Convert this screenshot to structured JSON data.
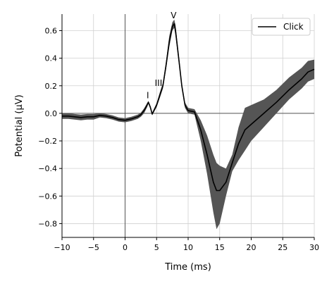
{
  "chart_data": {
    "type": "line",
    "xlabel": "Time (ms)",
    "ylabel": "Potential (µV)",
    "xlim": [
      -10,
      30
    ],
    "ylim": [
      -0.9,
      0.72
    ],
    "grid": true,
    "legend_position": "top-right",
    "xticks": [
      -10,
      -5,
      0,
      5,
      10,
      15,
      20,
      25,
      30
    ],
    "xtick_labels": [
      "−10",
      "−5",
      "0",
      "5",
      "10",
      "15",
      "20",
      "25",
      "30"
    ],
    "yticks": [
      -0.8,
      -0.6,
      -0.4,
      -0.2,
      0.0,
      0.2,
      0.4,
      0.6
    ],
    "ytick_labels": [
      "−0.8",
      "−0.6",
      "−0.4",
      "−0.2",
      "0.0",
      "0.2",
      "0.4",
      "0.6"
    ],
    "reference_lines": {
      "x": 0,
      "y": 0
    },
    "annotations": [
      {
        "text": "I",
        "x": 3.6,
        "y": 0.11
      },
      {
        "text": "III",
        "x": 5.3,
        "y": 0.2
      },
      {
        "text": "V",
        "x": 7.7,
        "y": 0.69
      }
    ],
    "series": [
      {
        "name": "Click",
        "color": "#000000",
        "band_color": "#555555",
        "x": [
          -10,
          -9,
          -8,
          -7,
          -6,
          -5,
          -4,
          -3,
          -2,
          -1,
          0,
          1,
          2,
          2.5,
          3,
          3.5,
          3.7,
          4,
          4.3,
          5,
          5.5,
          6,
          6.5,
          7,
          7.5,
          7.8,
          8,
          8.5,
          9,
          9.5,
          10,
          11,
          12,
          13,
          14,
          14.5,
          15,
          16,
          17,
          18,
          19,
          20,
          22,
          24,
          26,
          28,
          29,
          30
        ],
        "y": [
          -0.02,
          -0.02,
          -0.025,
          -0.03,
          -0.025,
          -0.025,
          -0.015,
          -0.02,
          -0.03,
          -0.045,
          -0.05,
          -0.04,
          -0.025,
          -0.01,
          0.02,
          0.06,
          0.08,
          0.045,
          -0.005,
          0.06,
          0.13,
          0.2,
          0.35,
          0.52,
          0.63,
          0.65,
          0.6,
          0.4,
          0.2,
          0.06,
          0.02,
          0.01,
          -0.12,
          -0.3,
          -0.5,
          -0.56,
          -0.56,
          -0.5,
          -0.36,
          -0.22,
          -0.12,
          -0.08,
          0.0,
          0.08,
          0.17,
          0.25,
          0.3,
          0.32
        ],
        "lower": [
          -0.04,
          -0.04,
          -0.045,
          -0.05,
          -0.045,
          -0.045,
          -0.03,
          -0.035,
          -0.045,
          -0.06,
          -0.065,
          -0.055,
          -0.04,
          -0.025,
          0.0,
          0.045,
          0.07,
          0.035,
          -0.015,
          0.045,
          0.11,
          0.18,
          0.32,
          0.48,
          0.6,
          0.62,
          0.56,
          0.37,
          0.18,
          0.04,
          0.0,
          -0.01,
          -0.2,
          -0.44,
          -0.72,
          -0.84,
          -0.8,
          -0.6,
          -0.42,
          -0.34,
          -0.27,
          -0.2,
          -0.1,
          0.0,
          0.1,
          0.18,
          0.23,
          0.25
        ],
        "upper": [
          0.0,
          0.0,
          -0.005,
          -0.01,
          -0.005,
          -0.005,
          0.0,
          -0.005,
          -0.015,
          -0.03,
          -0.035,
          -0.025,
          -0.01,
          0.005,
          0.035,
          0.075,
          0.09,
          0.055,
          0.005,
          0.075,
          0.15,
          0.22,
          0.38,
          0.56,
          0.66,
          0.68,
          0.64,
          0.43,
          0.22,
          0.08,
          0.04,
          0.03,
          -0.05,
          -0.16,
          -0.3,
          -0.36,
          -0.38,
          -0.4,
          -0.3,
          -0.1,
          0.04,
          0.06,
          0.1,
          0.17,
          0.26,
          0.33,
          0.38,
          0.39
        ]
      }
    ]
  }
}
